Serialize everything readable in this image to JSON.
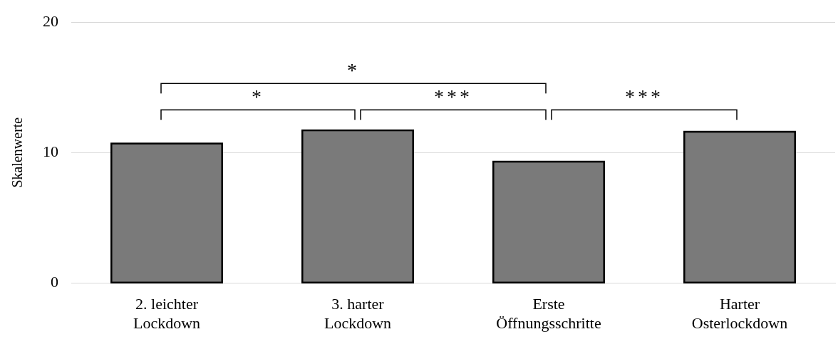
{
  "chart_data": {
    "type": "bar",
    "ylabel": "Skalenwerte",
    "categories": [
      "2. leichter\nLockdown",
      "3. harter\nLockdown",
      "Erste\nÖffnungsschritte",
      "Harter\nOsterlockdown"
    ],
    "values": [
      10.7,
      11.7,
      9.3,
      11.6
    ],
    "color": "#7a7a7a",
    "ylim": [
      0,
      20
    ],
    "yticks": [
      0,
      10,
      20
    ],
    "grid": "y",
    "legend": false,
    "annotations": [
      "*",
      "*",
      "***",
      "***"
    ]
  }
}
